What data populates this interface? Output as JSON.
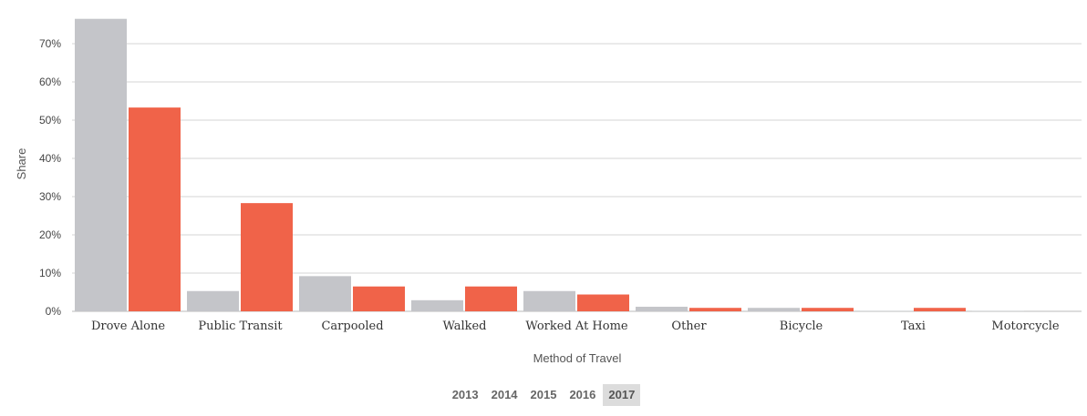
{
  "chart_data": {
    "type": "bar",
    "xlabel": "Method of Travel",
    "ylabel": "Share",
    "ylim": [
      0,
      0.76
    ],
    "y_ticks": [
      0,
      0.1,
      0.2,
      0.3,
      0.4,
      0.5,
      0.6,
      0.7
    ],
    "y_tick_labels": [
      "0%",
      "10%",
      "20%",
      "30%",
      "40%",
      "50%",
      "60%",
      "70%"
    ],
    "grid": true,
    "categories": [
      "Drove Alone",
      "Public Transit",
      "Carpooled",
      "Walked",
      "Worked At Home",
      "Other",
      "Bicycle",
      "Taxi",
      "Motorcycle"
    ],
    "series": [
      {
        "color": "#c4c5c9",
        "values": [
          0.765,
          0.053,
          0.092,
          0.029,
          0.053,
          0.012,
          0.009,
          0.001,
          0.001
        ]
      },
      {
        "color": "#f06349",
        "values": [
          0.533,
          0.283,
          0.065,
          0.065,
          0.044,
          0.009,
          0.009,
          0.009,
          0.0
        ]
      }
    ]
  },
  "year_selector": {
    "years": [
      "2013",
      "2014",
      "2015",
      "2016",
      "2017"
    ],
    "selected": "2017"
  }
}
